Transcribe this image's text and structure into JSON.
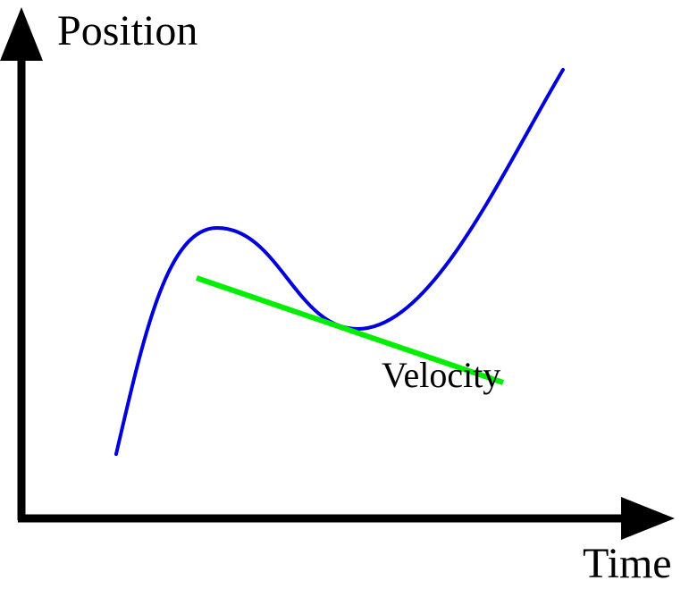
{
  "diagram": {
    "y_axis_label": "Position",
    "x_axis_label": "Time",
    "tangent_label": "Velocity",
    "colors": {
      "axes": "#000000",
      "curve": "#0000dd",
      "tangent": "#00ee00",
      "text": "#000000"
    }
  }
}
